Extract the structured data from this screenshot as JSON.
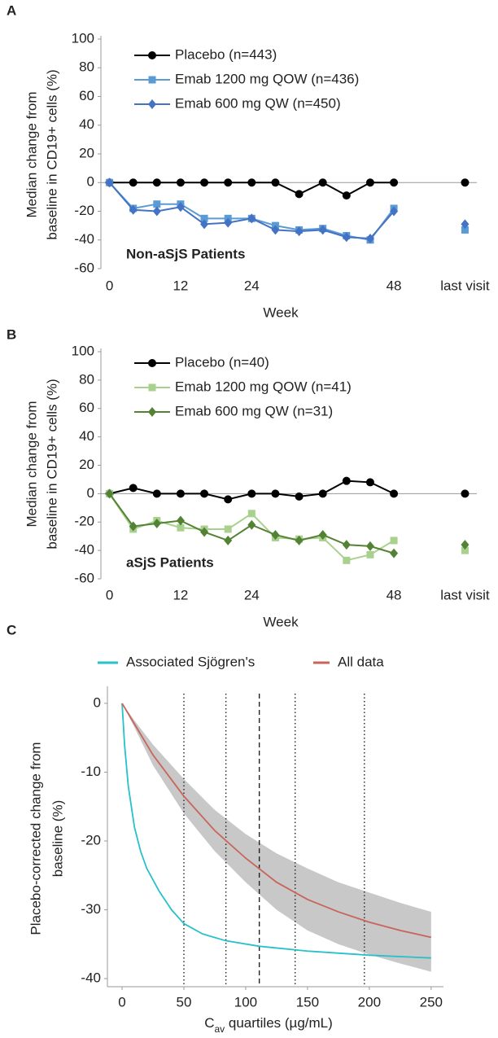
{
  "chart_data": [
    {
      "type": "line",
      "panel": "A",
      "ylabel": [
        "Median change from",
        "baseline in CD19+ cells (%)"
      ],
      "xlabel": "Week",
      "annotation": "Non-aSjS Patients",
      "xlim": [
        -2,
        62
      ],
      "ylim": [
        -60,
        100
      ],
      "xticks": [
        0,
        12,
        24,
        48,
        {
          "value": 60,
          "label": "last visit"
        }
      ],
      "yticks": [
        100,
        80,
        60,
        40,
        20,
        0,
        -20,
        -40,
        -60
      ],
      "x": [
        0,
        4,
        8,
        12,
        16,
        20,
        24,
        28,
        32,
        36,
        40,
        44,
        48,
        60
      ],
      "series": [
        {
          "name": "Placebo (n=443)",
          "color": "#000000",
          "marker": "circle",
          "values": [
            0,
            0,
            0,
            0,
            0,
            0,
            0,
            0,
            -8,
            0,
            -9,
            0,
            0,
            0
          ]
        },
        {
          "name": "Emab 1200 mg QOW (n=436)",
          "color": "#5b9bd5",
          "marker": "square",
          "values": [
            0,
            -18,
            -15,
            -15,
            -25,
            -25,
            -25,
            -30,
            -33,
            -32,
            -37,
            -40,
            -18,
            -33
          ]
        },
        {
          "name": "Emab 600 mg QW (n=450)",
          "color": "#4472c4",
          "marker": "diamond",
          "values": [
            0,
            -19,
            -20,
            -17,
            -29,
            -28,
            -25,
            -33,
            -34,
            -33,
            -38,
            -39,
            -20,
            -29
          ]
        }
      ]
    },
    {
      "type": "line",
      "panel": "B",
      "ylabel": [
        "Median change from",
        "baseline in CD19+ cells (%)"
      ],
      "xlabel": "Week",
      "annotation": "aSjS Patients",
      "xlim": [
        -2,
        62
      ],
      "ylim": [
        -60,
        100
      ],
      "xticks": [
        0,
        12,
        24,
        48,
        {
          "value": 60,
          "label": "last visit"
        }
      ],
      "yticks": [
        100,
        80,
        60,
        40,
        20,
        0,
        -20,
        -40,
        -60
      ],
      "x": [
        0,
        4,
        8,
        12,
        16,
        20,
        24,
        28,
        32,
        36,
        40,
        44,
        48,
        60
      ],
      "series": [
        {
          "name": "Placebo (n=40)",
          "color": "#000000",
          "marker": "circle",
          "values": [
            0,
            4,
            0,
            0,
            0,
            -4,
            0,
            0,
            -2,
            0,
            9,
            8,
            0,
            0
          ]
        },
        {
          "name": "Emab 1200 mg QOW (n=41)",
          "color": "#a9d18e",
          "marker": "square",
          "values": [
            0,
            -25,
            -19,
            -24,
            -25,
            -25,
            -14,
            -31,
            -32,
            -31,
            -47,
            -43,
            -33,
            -40
          ]
        },
        {
          "name": "Emab 600 mg QW (n=31)",
          "color": "#548235",
          "marker": "diamond",
          "values": [
            0,
            -23,
            -21,
            -19,
            -27,
            -33,
            -22,
            -29,
            -33,
            -29,
            -36,
            -37,
            -42,
            -36
          ]
        }
      ]
    },
    {
      "type": "curve",
      "panel": "C",
      "ylabel": [
        "Placebo-corrected change from",
        "baseline (%)"
      ],
      "xlabel": [
        "C",
        "av",
        " quartiles (µg/mL)"
      ],
      "xlim": [
        -12,
        260
      ],
      "ylim": [
        -41,
        2
      ],
      "xticks": [
        0,
        50,
        100,
        150,
        200,
        250
      ],
      "yticks": [
        0,
        -10,
        -20,
        -30,
        -40
      ],
      "vlines": [
        {
          "value": 50,
          "style": "dotted"
        },
        {
          "value": 84,
          "style": "dotted"
        },
        {
          "value": 111,
          "style": "dashed"
        },
        {
          "value": 140,
          "style": "dotted"
        },
        {
          "value": 196,
          "style": "dotted"
        }
      ],
      "band": {
        "color": "#c8c8c8",
        "x": [
          0,
          10,
          25,
          50,
          75,
          100,
          125,
          150,
          175,
          200,
          225,
          250
        ],
        "upper": [
          0,
          -2.5,
          -6,
          -11,
          -15.5,
          -19,
          -21.8,
          -24,
          -26,
          -27.5,
          -29,
          -30.3
        ],
        "lower": [
          0,
          -3.5,
          -9,
          -16,
          -21.5,
          -26,
          -30,
          -33,
          -35,
          -36.5,
          -37.8,
          -39
        ]
      },
      "series": [
        {
          "name": "Associated Sjögren's",
          "color": "#26c1c9",
          "x": [
            0,
            2,
            5,
            10,
            15,
            20,
            30,
            40,
            50,
            65,
            84,
            111,
            150,
            200,
            250
          ],
          "values": [
            0,
            -6,
            -12,
            -18,
            -21.5,
            -24,
            -27.3,
            -30,
            -32,
            -33.5,
            -34.5,
            -35.3,
            -36,
            -36.6,
            -37
          ]
        },
        {
          "name": "All data",
          "color": "#c8645a",
          "x": [
            0,
            10,
            25,
            50,
            75,
            100,
            125,
            150,
            175,
            200,
            225,
            250
          ],
          "values": [
            0,
            -3,
            -7.5,
            -13.5,
            -18.5,
            -22.5,
            -26,
            -28.5,
            -30.3,
            -31.8,
            -33,
            -34
          ]
        }
      ]
    }
  ]
}
